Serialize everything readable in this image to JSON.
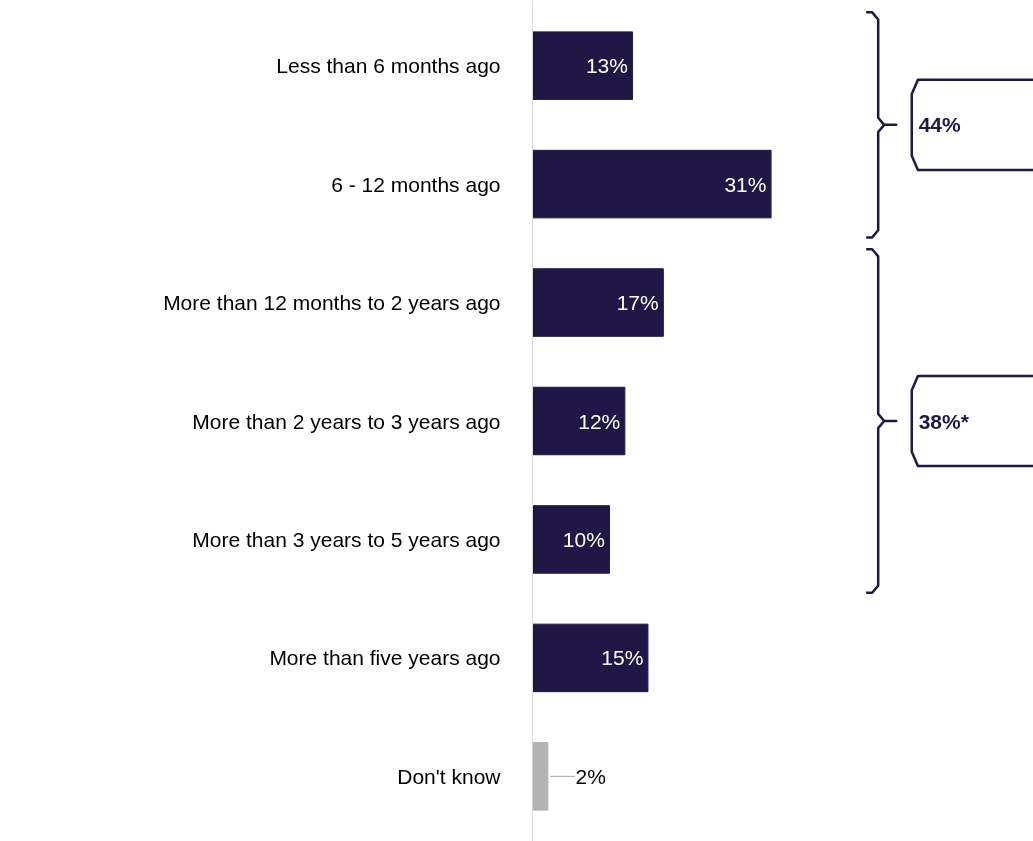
{
  "chart_data": {
    "type": "bar",
    "orientation": "horizontal",
    "categories": [
      "Less than 6 months ago",
      "6 - 12 months ago",
      "More than 12 months to 2 years ago",
      "More than 2 years to 3 years ago",
      "More than 3 years to 5 years ago",
      "More than five years ago",
      "Don't know"
    ],
    "values": [
      13,
      31,
      17,
      12,
      10,
      15,
      2
    ],
    "colors": [
      "#201747",
      "#201747",
      "#201747",
      "#201747",
      "#201747",
      "#201747",
      "#b3b3b3"
    ],
    "value_labels": [
      "13%",
      "31%",
      "17%",
      "12%",
      "10%",
      "15%",
      "2%"
    ],
    "annotations": [
      "44%",
      "38%*"
    ]
  }
}
